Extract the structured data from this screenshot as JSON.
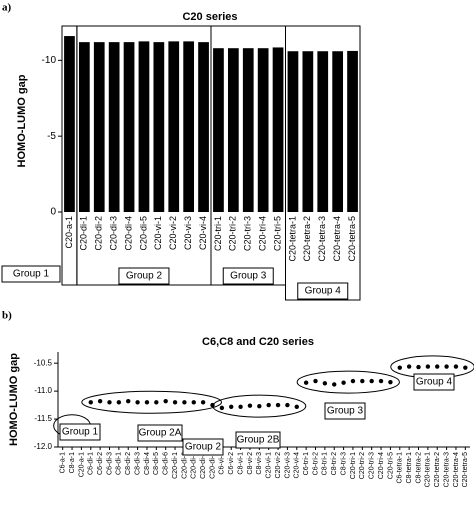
{
  "chart_data": [
    {
      "type": "bar",
      "panel_label": "a)",
      "title": "C20 series",
      "y_label": "HOMO-LUMO gap",
      "categories": [
        "C20-a-1",
        "C20-di-1",
        "C20-di-2",
        "C20-di-3",
        "C20-di-4",
        "C20-di-5",
        "C20-vi-1",
        "C20-vi-2",
        "C20-vi-3",
        "C20-vi-4",
        "C20-tri-1",
        "C20-tri-2",
        "C20-tri-3",
        "C20-tri-4",
        "C20-tri-5",
        "C20-tetra-1",
        "C20-tetra-2",
        "C20-tetra-3",
        "C20-tetra-4",
        "C20-tetra-5"
      ],
      "values": [
        -11.6,
        -11.2,
        -11.2,
        -11.2,
        -11.2,
        -11.25,
        -11.2,
        -11.25,
        -11.25,
        -11.2,
        -10.8,
        -10.8,
        -10.8,
        -10.8,
        -10.85,
        -10.6,
        -10.6,
        -10.6,
        -10.6,
        -10.62
      ],
      "color": "#000000",
      "ylim": [
        0,
        -12
      ],
      "yticks": [
        0,
        -5,
        -10
      ],
      "annotations": [
        "Group 1",
        "Group 2",
        "Group 3",
        "Group 4"
      ]
    },
    {
      "type": "dot",
      "panel_label": "b)",
      "title": "C6,C8 and C20 series",
      "y_label": "HOMO-LUMO gap",
      "categories": [
        "C6-a-1",
        "C8-a-1",
        "C20-a-1",
        "C6-di-1",
        "C6-di-2",
        "C6-di-3",
        "C8-di-1",
        "C8-di-2",
        "C8-di-3",
        "C8-di-4",
        "C8-di-5",
        "C8-di-6",
        "C20-di-1",
        "C20-di-2",
        "C20-di-3",
        "C20-di-4",
        "C20-di-5",
        "C6-vi-1",
        "C6-vi-2",
        "C8-vi-1",
        "C8-vi-2",
        "C8-vi-3",
        "C20-vi-1",
        "C20-vi-2",
        "C20-vi-3",
        "C20-vi-4",
        "C6-tri-1",
        "C6-tri-2",
        "C8-tri-1",
        "C8-tri-2",
        "C8-tri-3",
        "C20-tri-1",
        "C20-tri-2",
        "C20-tri-3",
        "C20-tri-4",
        "C20-tri-5",
        "C6-tetra-1",
        "C8-tetra-1",
        "C8-tetra-2",
        "C20-tetra-1",
        "C20-tetra-2",
        "C20-tetra-3",
        "C20-tetra-4",
        "C20-tetra-5"
      ],
      "values": [
        -11.62,
        -11.62,
        -11.62,
        -11.2,
        -11.18,
        -11.2,
        -11.2,
        -11.18,
        -11.2,
        -11.2,
        -11.2,
        -11.18,
        -11.2,
        -11.2,
        -11.2,
        -11.2,
        -11.25,
        -11.3,
        -11.28,
        -11.28,
        -11.26,
        -11.27,
        -11.25,
        -11.25,
        -11.25,
        -11.28,
        -10.85,
        -10.82,
        -10.86,
        -10.88,
        -10.85,
        -10.82,
        -10.82,
        -10.82,
        -10.82,
        -10.84,
        -10.58,
        -10.56,
        -10.57,
        -10.56,
        -10.56,
        -10.56,
        -10.56,
        -10.58
      ],
      "color": "#000000",
      "ylim": [
        -12,
        -10.3
      ],
      "yticks": [
        {
          "value": -12,
          "label": "-12.0"
        },
        -11.5,
        {
          "value": -11,
          "label": "-11.0"
        },
        -10.5
      ],
      "annotations": [
        "Group 1",
        "Group 2A",
        "Group 2",
        "Group 2B",
        "Group 3",
        "Group 4"
      ]
    }
  ]
}
